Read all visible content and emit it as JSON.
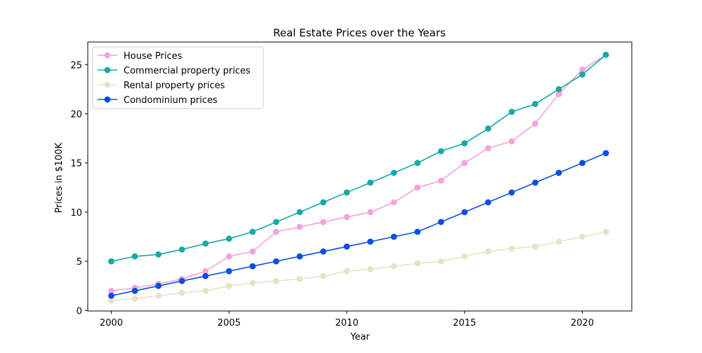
{
  "chart_data": {
    "type": "line",
    "title": "Real Estate Prices over the Years",
    "xlabel": "Year",
    "ylabel": "Prices in $100K",
    "x": [
      2000,
      2001,
      2002,
      2003,
      2004,
      2005,
      2006,
      2007,
      2008,
      2009,
      2010,
      2011,
      2012,
      2013,
      2014,
      2015,
      2016,
      2017,
      2018,
      2019,
      2020,
      2021
    ],
    "xlim": [
      1999,
      2022.1
    ],
    "ylim": [
      -0.05,
      27.3
    ],
    "xticks": [
      2000,
      2005,
      2010,
      2015,
      2020
    ],
    "yticks": [
      0,
      5,
      10,
      15,
      20,
      25
    ],
    "grid": false,
    "legend_position": "top-left",
    "series": [
      {
        "name": "House Prices",
        "color": "#f5a3dc",
        "values": [
          2,
          2.3,
          2.7,
          3.2,
          4,
          5.5,
          6,
          8,
          8.5,
          9,
          9.5,
          10,
          11,
          12.5,
          13.2,
          15,
          16.5,
          17.2,
          19,
          22,
          24.5,
          26
        ]
      },
      {
        "name": "Commercial property prices",
        "color": "#17a8a8",
        "values": [
          5,
          5.5,
          5.7,
          6.2,
          6.8,
          7.3,
          8,
          9,
          10,
          11,
          12,
          13,
          14,
          15,
          16.2,
          17,
          18.5,
          20.2,
          21,
          22.5,
          24,
          26
        ]
      },
      {
        "name": "Rental property prices",
        "color": "#e8e2c6",
        "values": [
          1,
          1.2,
          1.5,
          1.8,
          2,
          2.5,
          2.8,
          3,
          3.2,
          3.5,
          4,
          4.2,
          4.5,
          4.8,
          5,
          5.5,
          6,
          6.3,
          6.5,
          7,
          7.5,
          8
        ]
      },
      {
        "name": "Condominium prices",
        "color": "#0b4ee3",
        "values": [
          1.5,
          2,
          2.5,
          3,
          3.5,
          4,
          4.5,
          5,
          5.5,
          6,
          6.5,
          7,
          7.5,
          8,
          9,
          10,
          11,
          12,
          13,
          14,
          15,
          16
        ]
      }
    ]
  }
}
